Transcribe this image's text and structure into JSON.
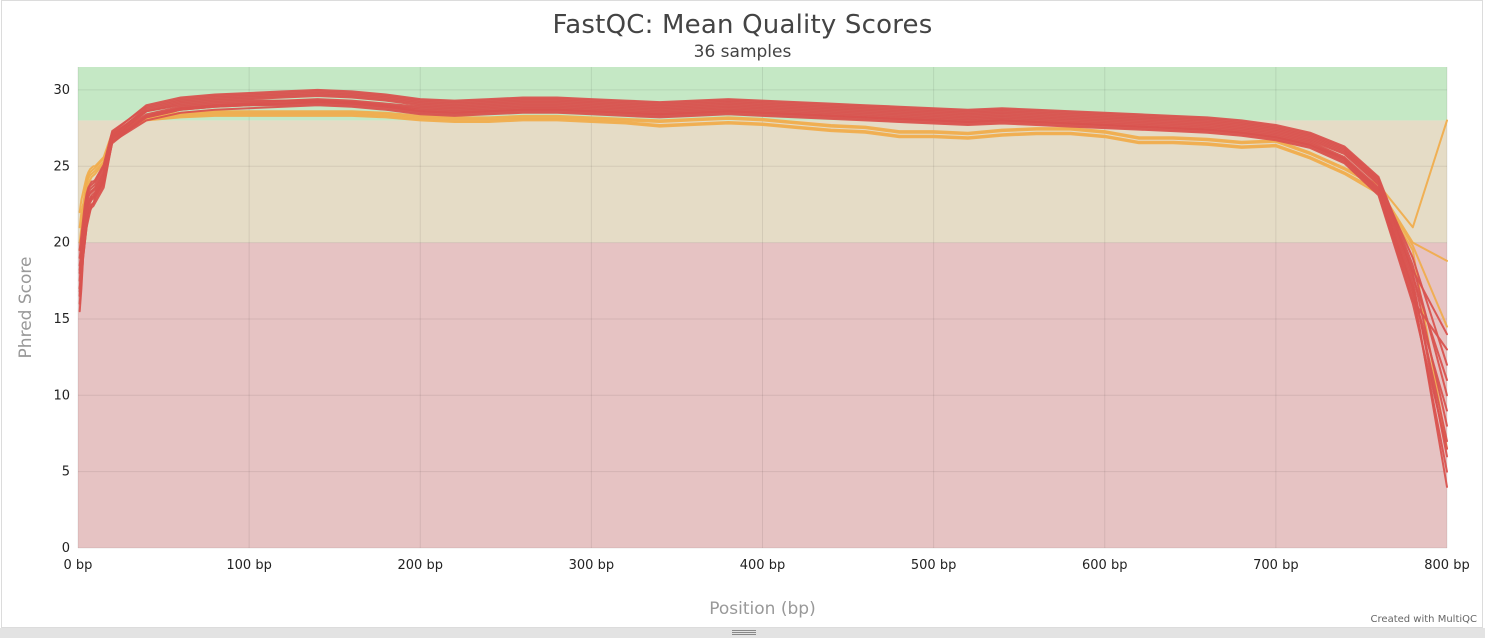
{
  "title": "FastQC: Mean Quality Scores",
  "subtitle": "36 samples",
  "credit": "Created with MultiQC",
  "chart_data": {
    "type": "line",
    "title": "FastQC: Mean Quality Scores",
    "subtitle": "36 samples",
    "xlabel": "Position (bp)",
    "ylabel": "Phred Score",
    "xlim": [
      0,
      800
    ],
    "ylim": [
      0,
      31.5
    ],
    "x_ticks": [
      0,
      100,
      200,
      300,
      400,
      500,
      600,
      700,
      800
    ],
    "x_tick_labels": [
      "0 bp",
      "100 bp",
      "200 bp",
      "300 bp",
      "400 bp",
      "500 bp",
      "600 bp",
      "700 bp",
      "800 bp"
    ],
    "y_ticks": [
      0,
      5,
      10,
      15,
      20,
      25,
      30
    ],
    "y_tick_labels": [
      "0",
      "5",
      "10",
      "15",
      "20",
      "25",
      "30"
    ],
    "grid": true,
    "bands": [
      {
        "from": 0,
        "to": 20,
        "color": "#e6c3c3"
      },
      {
        "from": 20,
        "to": 28,
        "color": "#e5dcc6"
      },
      {
        "from": 28,
        "to": 31.5,
        "color": "#c5e8c5"
      }
    ],
    "status_colors": {
      "fail": "#d9534f",
      "warn": "#f0ad4e"
    },
    "x": [
      1,
      2,
      3,
      4,
      5,
      6,
      7,
      8,
      9,
      10,
      15,
      20,
      40,
      60,
      80,
      100,
      120,
      140,
      160,
      180,
      200,
      220,
      240,
      260,
      280,
      300,
      320,
      340,
      360,
      380,
      400,
      420,
      440,
      460,
      480,
      500,
      520,
      540,
      560,
      580,
      600,
      620,
      640,
      660,
      680,
      700,
      720,
      740,
      760,
      780,
      800
    ],
    "series": [
      {
        "status": "fail",
        "values": [
          15.5,
          17,
          19,
          20,
          21,
          21.5,
          22,
          22.5,
          22.5,
          23,
          24,
          26.5,
          28.3,
          28.8,
          29,
          29.1,
          29.2,
          29.3,
          29.2,
          29,
          28.7,
          28.6,
          28.7,
          28.8,
          28.8,
          28.7,
          28.6,
          28.5,
          28.6,
          28.7,
          28.6,
          28.5,
          28.4,
          28.3,
          28.2,
          28.1,
          28,
          28.1,
          28,
          27.9,
          27.8,
          27.7,
          27.6,
          27.5,
          27.3,
          27,
          26.5,
          25.5,
          23.5,
          17,
          4
        ]
      },
      {
        "status": "fail",
        "values": [
          17,
          18.5,
          20,
          21,
          22,
          22.5,
          22.8,
          23,
          23,
          23.2,
          24.2,
          26.8,
          28.6,
          29,
          29.2,
          29.3,
          29.3,
          29.4,
          29.3,
          29.1,
          28.9,
          28.8,
          28.9,
          29,
          29,
          28.9,
          28.8,
          28.7,
          28.8,
          28.9,
          28.8,
          28.7,
          28.6,
          28.5,
          28.4,
          28.3,
          28.2,
          28.3,
          28.2,
          28.1,
          28,
          27.9,
          27.8,
          27.7,
          27.5,
          27.2,
          26.7,
          25.8,
          23.8,
          17.5,
          6
        ]
      },
      {
        "status": "fail",
        "values": [
          18,
          19,
          20.5,
          21.5,
          22.5,
          23,
          23.2,
          23.3,
          23.4,
          23.5,
          24.5,
          27,
          28.8,
          29.3,
          29.5,
          29.6,
          29.7,
          29.8,
          29.7,
          29.5,
          29.2,
          29.1,
          29.2,
          29.3,
          29.3,
          29.2,
          29.1,
          29,
          29.1,
          29.2,
          29.1,
          29,
          28.9,
          28.8,
          28.7,
          28.6,
          28.5,
          28.6,
          28.5,
          28.4,
          28.3,
          28.2,
          28.1,
          28,
          27.8,
          27.5,
          27,
          26.1,
          24.1,
          18,
          8
        ]
      },
      {
        "status": "fail",
        "values": [
          16.5,
          18,
          19.5,
          20.5,
          21.5,
          22,
          22.3,
          22.5,
          22.6,
          22.8,
          23.8,
          26.6,
          28.2,
          28.7,
          28.9,
          29,
          29.1,
          29.2,
          29.1,
          28.9,
          28.6,
          28.5,
          28.6,
          28.7,
          28.7,
          28.6,
          28.5,
          28.4,
          28.5,
          28.6,
          28.5,
          28.4,
          28.3,
          28.2,
          28.1,
          28,
          27.9,
          28,
          27.9,
          27.8,
          27.7,
          27.6,
          27.5,
          27.4,
          27.2,
          26.9,
          26.4,
          25.4,
          23.3,
          16.5,
          5
        ]
      },
      {
        "status": "fail",
        "values": [
          19,
          20,
          21,
          22,
          23,
          23.5,
          23.7,
          23.8,
          23.9,
          24,
          25,
          27.2,
          29,
          29.5,
          29.7,
          29.8,
          29.9,
          30,
          29.9,
          29.7,
          29.4,
          29.3,
          29.4,
          29.5,
          29.5,
          29.4,
          29.3,
          29.2,
          29.3,
          29.4,
          29.3,
          29.2,
          29.1,
          29,
          28.9,
          28.8,
          28.7,
          28.8,
          28.7,
          28.6,
          28.5,
          28.4,
          28.3,
          28.2,
          28,
          27.7,
          27.2,
          26.3,
          24.3,
          18.5,
          10
        ]
      },
      {
        "status": "fail",
        "values": [
          17.5,
          19,
          20,
          21,
          22,
          22.6,
          22.9,
          23.1,
          23.2,
          23.3,
          24.3,
          26.9,
          28.4,
          28.9,
          29.1,
          29.2,
          29.3,
          29.3,
          29.2,
          29,
          28.8,
          28.7,
          28.8,
          28.9,
          28.9,
          28.8,
          28.7,
          28.6,
          28.7,
          28.8,
          28.7,
          28.6,
          28.5,
          28.4,
          28.3,
          28.2,
          28.1,
          28.2,
          28.1,
          28,
          27.9,
          27.8,
          27.7,
          27.6,
          27.4,
          27.1,
          26.6,
          25.6,
          23.6,
          17.2,
          7
        ]
      },
      {
        "status": "fail",
        "values": [
          18.5,
          19.5,
          21,
          22,
          23,
          23.3,
          23.5,
          23.6,
          23.7,
          23.8,
          24.8,
          27.1,
          28.7,
          29.2,
          29.4,
          29.5,
          29.6,
          29.7,
          29.6,
          29.4,
          29.1,
          29,
          29.1,
          29.2,
          29.2,
          29.1,
          29,
          28.9,
          29,
          29.1,
          29,
          28.9,
          28.8,
          28.7,
          28.6,
          28.5,
          28.4,
          28.5,
          28.4,
          28.3,
          28.2,
          28.1,
          28,
          27.9,
          27.7,
          27.4,
          26.9,
          26,
          24,
          19,
          12
        ]
      },
      {
        "status": "fail",
        "values": [
          16,
          17.5,
          19,
          20,
          21,
          21.8,
          22.1,
          22.3,
          22.4,
          22.6,
          23.6,
          26.6,
          28,
          28.5,
          28.7,
          28.8,
          28.9,
          29,
          28.9,
          28.7,
          28.4,
          28.3,
          28.4,
          28.5,
          28.5,
          28.4,
          28.3,
          28.2,
          28.3,
          28.4,
          28.3,
          28.2,
          28.1,
          28,
          27.9,
          27.8,
          27.7,
          27.8,
          27.7,
          27.6,
          27.5,
          27.4,
          27.3,
          27.2,
          27,
          26.7,
          26.2,
          25.2,
          23.1,
          16,
          6.5
        ]
      },
      {
        "status": "fail",
        "values": [
          19.5,
          20.5,
          21.5,
          22.5,
          23.2,
          23.6,
          23.8,
          24,
          24,
          24.1,
          25.1,
          27.3,
          28.9,
          29.4,
          29.6,
          29.7,
          29.8,
          29.9,
          29.8,
          29.6,
          29.3,
          29.2,
          29.3,
          29.4,
          29.4,
          29.3,
          29.2,
          29.1,
          29.2,
          29.3,
          29.2,
          29.1,
          29,
          28.9,
          28.8,
          28.7,
          28.6,
          28.7,
          28.6,
          28.5,
          28.4,
          28.3,
          28.2,
          28.1,
          27.9,
          27.6,
          27.1,
          26.2,
          24.2,
          18.2,
          14
        ]
      },
      {
        "status": "fail",
        "values": [
          17,
          18,
          19.5,
          20.5,
          21.5,
          22.2,
          22.6,
          22.8,
          22.9,
          23,
          24,
          26.7,
          28.3,
          28.8,
          29,
          29.1,
          29.1,
          29.2,
          29.1,
          28.9,
          28.6,
          28.5,
          28.6,
          28.7,
          28.7,
          28.6,
          28.5,
          28.4,
          28.5,
          28.6,
          28.5,
          28.4,
          28.3,
          28.2,
          28.1,
          28,
          27.9,
          28,
          27.9,
          27.8,
          27.7,
          27.6,
          27.5,
          27.4,
          27.2,
          26.9,
          26.4,
          25.5,
          23.4,
          16.8,
          9
        ]
      },
      {
        "status": "fail",
        "values": [
          18.2,
          19.2,
          20.5,
          21.5,
          22.5,
          23,
          23.3,
          23.4,
          23.5,
          23.6,
          24.6,
          27,
          28.6,
          29.1,
          29.3,
          29.4,
          29.5,
          29.6,
          29.5,
          29.3,
          29,
          28.9,
          29,
          29.1,
          29.1,
          29,
          28.9,
          28.8,
          28.9,
          29,
          28.9,
          28.8,
          28.7,
          28.6,
          28.5,
          28.4,
          28.3,
          28.4,
          28.3,
          28.2,
          28.1,
          28,
          27.9,
          27.8,
          27.6,
          27.3,
          26.8,
          25.9,
          23.9,
          17.8,
          11
        ]
      },
      {
        "status": "fail",
        "values": [
          16.8,
          18,
          19.5,
          20.8,
          21.8,
          22.4,
          22.7,
          22.9,
          23,
          23.2,
          24.2,
          26.8,
          28.2,
          28.7,
          28.9,
          29,
          29,
          29.1,
          29,
          28.8,
          28.5,
          28.4,
          28.5,
          28.6,
          28.6,
          28.5,
          28.4,
          28.3,
          28.4,
          28.5,
          28.4,
          28.3,
          28.2,
          28.1,
          28,
          27.9,
          27.8,
          27.9,
          27.8,
          27.7,
          27.6,
          27.5,
          27.4,
          27.3,
          27.1,
          26.8,
          26.3,
          25.3,
          23.2,
          16.2,
          13
        ]
      },
      {
        "status": "warn",
        "values": [
          20,
          21,
          22,
          23,
          23.8,
          24.2,
          24.4,
          24.5,
          24.6,
          24.7,
          25.3,
          27,
          28.1,
          28.3,
          28.4,
          28.4,
          28.4,
          28.4,
          28.4,
          28.3,
          28.1,
          28,
          28,
          28.1,
          28.1,
          28,
          27.9,
          27.7,
          27.8,
          27.9,
          27.8,
          27.6,
          27.4,
          27.3,
          27,
          27,
          26.9,
          27.1,
          27.2,
          27.2,
          27,
          26.6,
          26.6,
          26.5,
          26.3,
          26.4,
          25.6,
          24.6,
          23.4,
          19.8,
          14.5
        ]
      },
      {
        "status": "warn",
        "values": [
          21,
          22,
          22.5,
          23.2,
          24,
          24.4,
          24.6,
          24.7,
          24.8,
          24.9,
          25.5,
          27.1,
          28.2,
          28.4,
          28.5,
          28.5,
          28.5,
          28.5,
          28.5,
          28.4,
          28.2,
          28.1,
          28.1,
          28.2,
          28.2,
          28.1,
          28,
          27.9,
          28,
          28.1,
          28,
          27.8,
          27.6,
          27.5,
          27.2,
          27.2,
          27.1,
          27.3,
          27.4,
          27.4,
          27.2,
          26.8,
          26.8,
          26.7,
          26.5,
          26.6,
          25.8,
          24.8,
          23.6,
          20,
          18.8
        ]
      },
      {
        "status": "warn",
        "values": [
          22,
          22.8,
          23.3,
          23.8,
          24.3,
          24.6,
          24.8,
          24.9,
          25,
          25,
          25.6,
          27.2,
          28.3,
          28.5,
          28.6,
          28.6,
          28.6,
          28.6,
          28.6,
          28.5,
          28.3,
          28.2,
          28.2,
          28.3,
          28.3,
          28.2,
          28.1,
          28,
          28.1,
          28.2,
          28.1,
          27.9,
          27.7,
          27.6,
          27.3,
          27.3,
          27.2,
          27.4,
          27.5,
          27.5,
          27.3,
          26.9,
          26.9,
          26.8,
          26.6,
          26.7,
          25.9,
          24.9,
          23.8,
          21,
          28
        ]
      },
      {
        "status": "warn",
        "values": [
          19.5,
          20.5,
          21.5,
          22.4,
          23.2,
          23.8,
          24.1,
          24.3,
          24.4,
          24.5,
          25.2,
          26.9,
          28,
          28.2,
          28.3,
          28.3,
          28.3,
          28.3,
          28.3,
          28.2,
          28,
          27.9,
          27.9,
          28,
          28,
          27.9,
          27.8,
          27.6,
          27.7,
          27.8,
          27.7,
          27.5,
          27.3,
          27.2,
          26.9,
          26.9,
          26.8,
          27,
          27.1,
          27.1,
          26.9,
          26.5,
          26.5,
          26.4,
          26.2,
          26.3,
          25.5,
          24.5,
          23.2,
          19.5,
          6.5
        ]
      }
    ]
  }
}
